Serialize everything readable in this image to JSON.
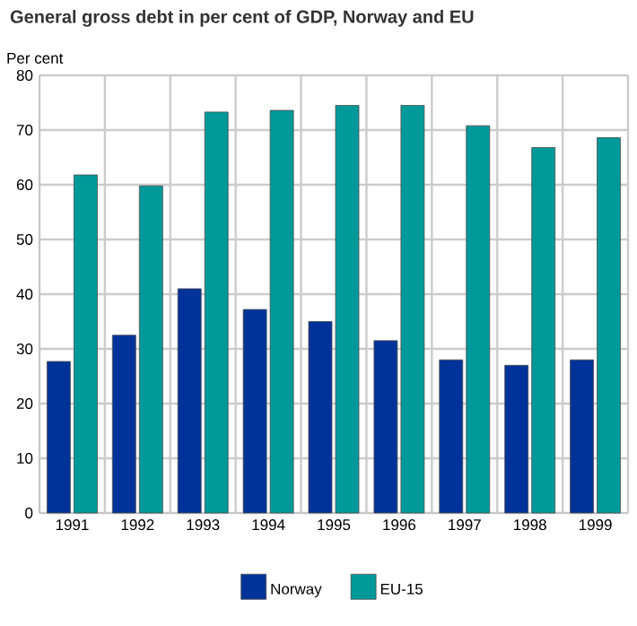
{
  "chart_data": {
    "type": "bar",
    "title": "General gross debt in per cent of GDP, Norway and EU",
    "ylabel": "Per cent",
    "categories": [
      "1991",
      "1992",
      "1993",
      "1994",
      "1995",
      "1996",
      "1997",
      "1998",
      "1999"
    ],
    "series": [
      {
        "name": "Norway",
        "color": "#003399",
        "values": [
          27.7,
          32.5,
          41,
          37.2,
          35,
          31.5,
          28,
          27,
          28
        ]
      },
      {
        "name": "EU-15",
        "color": "#009999",
        "values": [
          61.8,
          59.8,
          73.3,
          73.6,
          74.5,
          74.5,
          70.8,
          66.8,
          68.6
        ]
      }
    ],
    "ylim": [
      0,
      80
    ],
    "yticks": [
      0,
      10,
      20,
      30,
      40,
      50,
      60,
      70,
      80
    ],
    "grid": true,
    "legend": "bottom"
  }
}
